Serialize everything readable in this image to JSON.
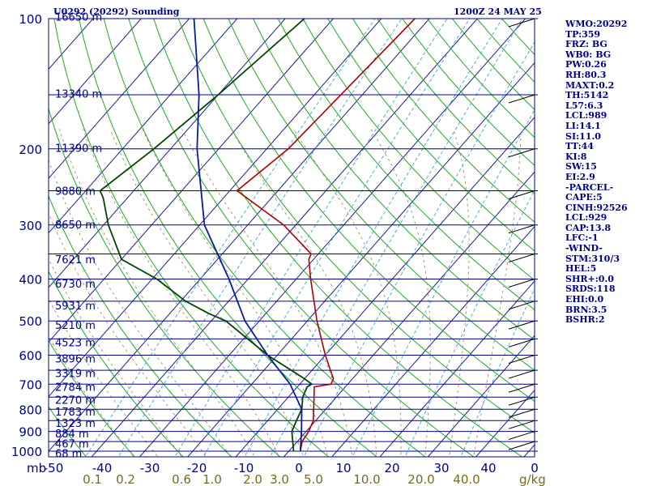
{
  "header": {
    "station": "U0292 (20292) Sounding",
    "valid_time": "1200Z 24 MAY 25"
  },
  "indices": [
    "WMO:20292",
    "TP:359",
    "FRZ: BG",
    "WB0: BG",
    "PW:0.26",
    "RH:80.3",
    "MAXT:0.2",
    "TH:5142",
    "L57:6.3",
    "LCL:989",
    "LI:14.1",
    "SI:11.0",
    "TT:44",
    "KI:8",
    "SW:15",
    "EI:2.9",
    "-PARCEL-",
    "CAPE:5",
    "CINH:92526",
    "LCL:929",
    "CAP:13.8",
    "LFC:-1",
    "-WIND-",
    "STM:310/3",
    "HEL:5",
    "SHR+:0.0",
    "SRDS:118",
    "EHI:0.0",
    "BRN:3.5",
    "BSHR:2"
  ],
  "colors": {
    "isobar": "#00008b",
    "isotherm": "#1c1c8c",
    "dry_adiabat": "#22aa22",
    "moist_adiabat": "#9e8f6a",
    "mixing_ratio": "#3aa6d8",
    "temperature": "#b00000",
    "dewpoint": "#004400",
    "parcel": "#0a1aa0",
    "label": "#00008b",
    "mixing_label": "#7a6a1e"
  },
  "chart_data": {
    "type": "skew-t",
    "pressure_axis_label": "mb",
    "pressure_levels": [
      100,
      200,
      300,
      400,
      500,
      600,
      700,
      800,
      900,
      1000
    ],
    "pressure_range_hpa": [
      1000,
      100
    ],
    "temperature_ticks": [
      -50,
      -40,
      -30,
      -20,
      -10,
      0,
      10,
      20,
      30,
      40,
      0
    ],
    "mixing_ratio_unit": "g/kg",
    "mixing_ratio_labels": [
      "0.1",
      "0.2",
      "0.6",
      "1.0",
      "2.0",
      "3.0",
      "5.0",
      "10.0",
      "20.0",
      "40.0"
    ],
    "heights": [
      {
        "p": 99,
        "height": "16650 m"
      },
      {
        "p": 149,
        "height": "13340 m"
      },
      {
        "p": 199,
        "height": "11390 m"
      },
      {
        "p": 250,
        "height": "9880 m"
      },
      {
        "p": 299,
        "height": "8650 m"
      },
      {
        "p": 360,
        "height": "7621 m"
      },
      {
        "p": 410,
        "height": "6730 m"
      },
      {
        "p": 460,
        "height": "5931 m"
      },
      {
        "p": 510,
        "height": "5210 m"
      },
      {
        "p": 560,
        "height": "4523 m"
      },
      {
        "p": 610,
        "height": "3896 m"
      },
      {
        "p": 660,
        "height": "3319 m"
      },
      {
        "p": 710,
        "height": "2784 m"
      },
      {
        "p": 760,
        "height": "2270 m"
      },
      {
        "p": 810,
        "height": "1783 m"
      },
      {
        "p": 860,
        "height": "1323 m"
      },
      {
        "p": 910,
        "height": "884 m"
      },
      {
        "p": 960,
        "height": "467 m"
      },
      {
        "p": 1010,
        "height": "68 m"
      }
    ],
    "series": [
      {
        "key": "temperature",
        "points": [
          [
            100,
            -53
          ],
          [
            200,
            -55.5
          ],
          [
            250,
            -58.5
          ],
          [
            300,
            -42.5
          ],
          [
            350,
            -31.5
          ],
          [
            360,
            -31
          ],
          [
            400,
            -27
          ],
          [
            500,
            -18
          ],
          [
            600,
            -10
          ],
          [
            680,
            -4
          ],
          [
            700,
            -3.5
          ],
          [
            710,
            -6.5
          ],
          [
            800,
            -2.5
          ],
          [
            850,
            -0.5
          ],
          [
            900,
            0.5
          ],
          [
            950,
            1
          ],
          [
            1000,
            2.4
          ]
        ]
      },
      {
        "key": "dewpoint",
        "points": [
          [
            100,
            -76
          ],
          [
            150,
            -80
          ],
          [
            200,
            -83.5
          ],
          [
            250,
            -87
          ],
          [
            260,
            -85
          ],
          [
            300,
            -79
          ],
          [
            360,
            -70
          ],
          [
            400,
            -59
          ],
          [
            450,
            -49
          ],
          [
            480,
            -42
          ],
          [
            500,
            -37
          ],
          [
            600,
            -22
          ],
          [
            680,
            -10
          ],
          [
            700,
            -7.5
          ],
          [
            710,
            -8
          ],
          [
            750,
            -7
          ],
          [
            800,
            -5
          ],
          [
            850,
            -4
          ],
          [
            900,
            -3
          ],
          [
            1000,
            1
          ]
        ]
      },
      {
        "key": "parcel",
        "points": [
          [
            100,
            -99
          ],
          [
            150,
            -84
          ],
          [
            200,
            -74.5
          ],
          [
            300,
            -59
          ],
          [
            400,
            -44
          ],
          [
            500,
            -33
          ],
          [
            600,
            -22
          ],
          [
            700,
            -12
          ],
          [
            800,
            -5
          ],
          [
            900,
            -1
          ],
          [
            1000,
            2.4
          ]
        ]
      }
    ]
  }
}
